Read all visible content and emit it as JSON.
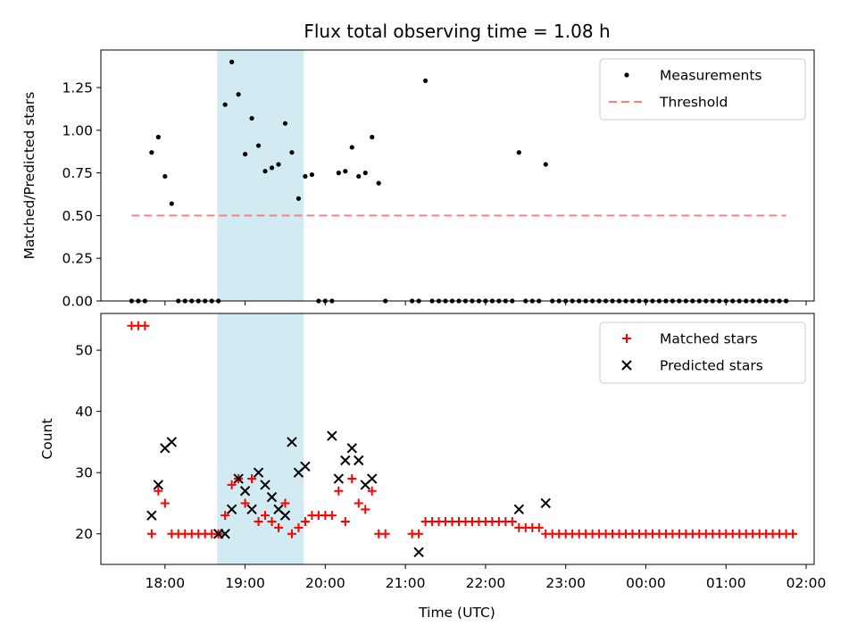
{
  "figure": {
    "title": "Flux total observing time = 1.08 h",
    "xlabel": "Time (UTC)"
  },
  "chart_data": [
    {
      "type": "scatter",
      "title": "Flux total observing time = 1.08 h",
      "ylabel": "Matched/Predicted stars",
      "xlim_hours": [
        17.2,
        26.1
      ],
      "ylim": [
        0,
        1.47
      ],
      "yticks": [
        "0.00",
        "0.25",
        "0.50",
        "0.75",
        "1.00",
        "1.25"
      ],
      "ytick_values": [
        0,
        0.25,
        0.5,
        0.75,
        1.0,
        1.25
      ],
      "xticks": [
        "18:00",
        "19:00",
        "20:00",
        "21:00",
        "22:00",
        "23:00",
        "00:00",
        "01:00",
        "02:00"
      ],
      "xtick_values": [
        18,
        19,
        20,
        21,
        22,
        23,
        24,
        25,
        26
      ],
      "shaded_span": [
        "18:39",
        "19:44"
      ],
      "legend": {
        "position": "top-right",
        "entries": [
          "Measurements",
          "Threshold"
        ]
      },
      "threshold": {
        "name": "Threshold",
        "value": 0.5,
        "x_start": "17:35",
        "x_end": "01:45",
        "color": "#f88080"
      },
      "series": [
        {
          "name": "Measurements",
          "color": "#000000",
          "points": [
            [
              "17:35",
              0
            ],
            [
              "17:40",
              0
            ],
            [
              "17:45",
              0
            ],
            [
              "17:50",
              0.87
            ],
            [
              "17:55",
              0.96
            ],
            [
              "18:00",
              0.73
            ],
            [
              "18:05",
              0.57
            ],
            [
              "18:10",
              0
            ],
            [
              "18:15",
              0
            ],
            [
              "18:20",
              0
            ],
            [
              "18:25",
              0
            ],
            [
              "18:30",
              0
            ],
            [
              "18:35",
              0
            ],
            [
              "18:40",
              0
            ],
            [
              "18:45",
              1.15
            ],
            [
              "18:50",
              1.4
            ],
            [
              "18:55",
              1.21
            ],
            [
              "19:00",
              0.86
            ],
            [
              "19:05",
              1.07
            ],
            [
              "19:10",
              0.91
            ],
            [
              "19:15",
              0.76
            ],
            [
              "19:20",
              0.78
            ],
            [
              "19:25",
              0.8
            ],
            [
              "19:30",
              1.04
            ],
            [
              "19:35",
              0.87
            ],
            [
              "19:40",
              0.6
            ],
            [
              "19:45",
              0.73
            ],
            [
              "19:50",
              0.74
            ],
            [
              "19:55",
              0
            ],
            [
              "20:00",
              0
            ],
            [
              "20:05",
              0
            ],
            [
              "20:10",
              0.75
            ],
            [
              "20:15",
              0.76
            ],
            [
              "20:20",
              0.9
            ],
            [
              "20:25",
              0.73
            ],
            [
              "20:30",
              0.75
            ],
            [
              "20:35",
              0.96
            ],
            [
              "20:40",
              0.69
            ],
            [
              "20:45",
              0
            ],
            [
              "21:05",
              0
            ],
            [
              "21:10",
              0
            ],
            [
              "21:15",
              1.29
            ],
            [
              "21:20",
              0
            ],
            [
              "21:25",
              0
            ],
            [
              "21:30",
              0
            ],
            [
              "21:35",
              0
            ],
            [
              "21:40",
              0
            ],
            [
              "21:45",
              0
            ],
            [
              "21:50",
              0
            ],
            [
              "21:55",
              0
            ],
            [
              "22:00",
              0
            ],
            [
              "22:05",
              0
            ],
            [
              "22:10",
              0
            ],
            [
              "22:15",
              0
            ],
            [
              "22:20",
              0
            ],
            [
              "22:25",
              0.87
            ],
            [
              "22:30",
              0
            ],
            [
              "22:35",
              0
            ],
            [
              "22:40",
              0
            ],
            [
              "22:45",
              0.8
            ],
            [
              "22:50",
              0
            ],
            [
              "22:55",
              0
            ],
            [
              "23:00",
              0
            ],
            [
              "23:05",
              0
            ],
            [
              "23:10",
              0
            ],
            [
              "23:15",
              0
            ],
            [
              "23:20",
              0
            ],
            [
              "23:25",
              0
            ],
            [
              "23:30",
              0
            ],
            [
              "23:35",
              0
            ],
            [
              "23:40",
              0
            ],
            [
              "23:45",
              0
            ],
            [
              "23:50",
              0
            ],
            [
              "23:55",
              0
            ],
            [
              "00:00",
              0
            ],
            [
              "00:05",
              0
            ],
            [
              "00:10",
              0
            ],
            [
              "00:15",
              0
            ],
            [
              "00:20",
              0
            ],
            [
              "00:25",
              0
            ],
            [
              "00:30",
              0
            ],
            [
              "00:35",
              0
            ],
            [
              "00:40",
              0
            ],
            [
              "00:45",
              0
            ],
            [
              "00:50",
              0
            ],
            [
              "00:55",
              0
            ],
            [
              "01:00",
              0
            ],
            [
              "01:05",
              0
            ],
            [
              "01:10",
              0
            ],
            [
              "01:15",
              0
            ],
            [
              "01:20",
              0
            ],
            [
              "01:25",
              0
            ],
            [
              "01:30",
              0
            ],
            [
              "01:35",
              0
            ],
            [
              "01:40",
              0
            ],
            [
              "01:45",
              0
            ]
          ]
        }
      ]
    },
    {
      "type": "scatter",
      "xlabel": "Time (UTC)",
      "ylabel": "Count",
      "xlim_hours": [
        17.2,
        26.1
      ],
      "ylim": [
        15,
        56
      ],
      "yticks": [
        "20",
        "30",
        "40",
        "50"
      ],
      "ytick_values": [
        20,
        30,
        40,
        50
      ],
      "xticks": [
        "18:00",
        "19:00",
        "20:00",
        "21:00",
        "22:00",
        "23:00",
        "00:00",
        "01:00",
        "02:00"
      ],
      "xtick_values": [
        18,
        19,
        20,
        21,
        22,
        23,
        24,
        25,
        26
      ],
      "shaded_span": [
        "18:39",
        "19:44"
      ],
      "legend": {
        "position": "top-right",
        "entries": [
          "Matched stars",
          "Predicted stars"
        ]
      },
      "series": [
        {
          "name": "Matched stars",
          "marker": "plus",
          "color": "#ff0000",
          "points": [
            [
              "17:35",
              54
            ],
            [
              "17:40",
              54
            ],
            [
              "17:45",
              54
            ],
            [
              "17:50",
              20
            ],
            [
              "17:55",
              27
            ],
            [
              "18:00",
              25
            ],
            [
              "18:05",
              20
            ],
            [
              "18:10",
              20
            ],
            [
              "18:15",
              20
            ],
            [
              "18:20",
              20
            ],
            [
              "18:25",
              20
            ],
            [
              "18:30",
              20
            ],
            [
              "18:35",
              20
            ],
            [
              "18:40",
              20
            ],
            [
              "18:45",
              23
            ],
            [
              "18:50",
              28
            ],
            [
              "18:55",
              29
            ],
            [
              "19:00",
              25
            ],
            [
              "19:05",
              29
            ],
            [
              "19:10",
              22
            ],
            [
              "19:15",
              23
            ],
            [
              "19:20",
              22
            ],
            [
              "19:25",
              21
            ],
            [
              "19:30",
              25
            ],
            [
              "19:35",
              20
            ],
            [
              "19:40",
              21
            ],
            [
              "19:45",
              22
            ],
            [
              "19:50",
              23
            ],
            [
              "19:55",
              23
            ],
            [
              "20:00",
              23
            ],
            [
              "20:05",
              23
            ],
            [
              "20:10",
              27
            ],
            [
              "20:15",
              22
            ],
            [
              "20:20",
              29
            ],
            [
              "20:25",
              25
            ],
            [
              "20:30",
              24
            ],
            [
              "20:35",
              27
            ],
            [
              "20:40",
              20
            ],
            [
              "20:45",
              20
            ],
            [
              "21:05",
              20
            ],
            [
              "21:10",
              20
            ],
            [
              "21:15",
              22
            ],
            [
              "21:20",
              22
            ],
            [
              "21:25",
              22
            ],
            [
              "21:30",
              22
            ],
            [
              "21:35",
              22
            ],
            [
              "21:40",
              22
            ],
            [
              "21:45",
              22
            ],
            [
              "21:50",
              22
            ],
            [
              "21:55",
              22
            ],
            [
              "22:00",
              22
            ],
            [
              "22:05",
              22
            ],
            [
              "22:10",
              22
            ],
            [
              "22:15",
              22
            ],
            [
              "22:20",
              22
            ],
            [
              "22:25",
              21
            ],
            [
              "22:30",
              21
            ],
            [
              "22:35",
              21
            ],
            [
              "22:40",
              21
            ],
            [
              "22:45",
              20
            ],
            [
              "22:50",
              20
            ],
            [
              "22:55",
              20
            ],
            [
              "23:00",
              20
            ],
            [
              "23:05",
              20
            ],
            [
              "23:10",
              20
            ],
            [
              "23:15",
              20
            ],
            [
              "23:20",
              20
            ],
            [
              "23:25",
              20
            ],
            [
              "23:30",
              20
            ],
            [
              "23:35",
              20
            ],
            [
              "23:40",
              20
            ],
            [
              "23:45",
              20
            ],
            [
              "23:50",
              20
            ],
            [
              "23:55",
              20
            ],
            [
              "00:00",
              20
            ],
            [
              "00:05",
              20
            ],
            [
              "00:10",
              20
            ],
            [
              "00:15",
              20
            ],
            [
              "00:20",
              20
            ],
            [
              "00:25",
              20
            ],
            [
              "00:30",
              20
            ],
            [
              "00:35",
              20
            ],
            [
              "00:40",
              20
            ],
            [
              "00:45",
              20
            ],
            [
              "00:50",
              20
            ],
            [
              "00:55",
              20
            ],
            [
              "01:00",
              20
            ],
            [
              "01:05",
              20
            ],
            [
              "01:10",
              20
            ],
            [
              "01:15",
              20
            ],
            [
              "01:20",
              20
            ],
            [
              "01:25",
              20
            ],
            [
              "01:30",
              20
            ],
            [
              "01:35",
              20
            ],
            [
              "01:40",
              20
            ],
            [
              "01:45",
              20
            ],
            [
              "01:50",
              20
            ]
          ]
        },
        {
          "name": "Predicted stars",
          "marker": "x",
          "color": "#000000",
          "points": [
            [
              "17:50",
              23
            ],
            [
              "17:55",
              28
            ],
            [
              "18:00",
              34
            ],
            [
              "18:05",
              35
            ],
            [
              "18:40",
              20
            ],
            [
              "18:45",
              20
            ],
            [
              "18:50",
              24
            ],
            [
              "18:55",
              29
            ],
            [
              "19:00",
              27
            ],
            [
              "19:05",
              24
            ],
            [
              "19:10",
              30
            ],
            [
              "19:15",
              28
            ],
            [
              "19:20",
              26
            ],
            [
              "19:25",
              24
            ],
            [
              "19:30",
              23
            ],
            [
              "19:35",
              35
            ],
            [
              "19:40",
              30
            ],
            [
              "19:45",
              31
            ],
            [
              "20:05",
              36
            ],
            [
              "20:10",
              29
            ],
            [
              "20:15",
              32
            ],
            [
              "20:20",
              34
            ],
            [
              "20:25",
              32
            ],
            [
              "20:30",
              28
            ],
            [
              "20:35",
              29
            ],
            [
              "21:10",
              17
            ],
            [
              "22:25",
              24
            ],
            [
              "22:45",
              25
            ]
          ]
        }
      ]
    }
  ]
}
